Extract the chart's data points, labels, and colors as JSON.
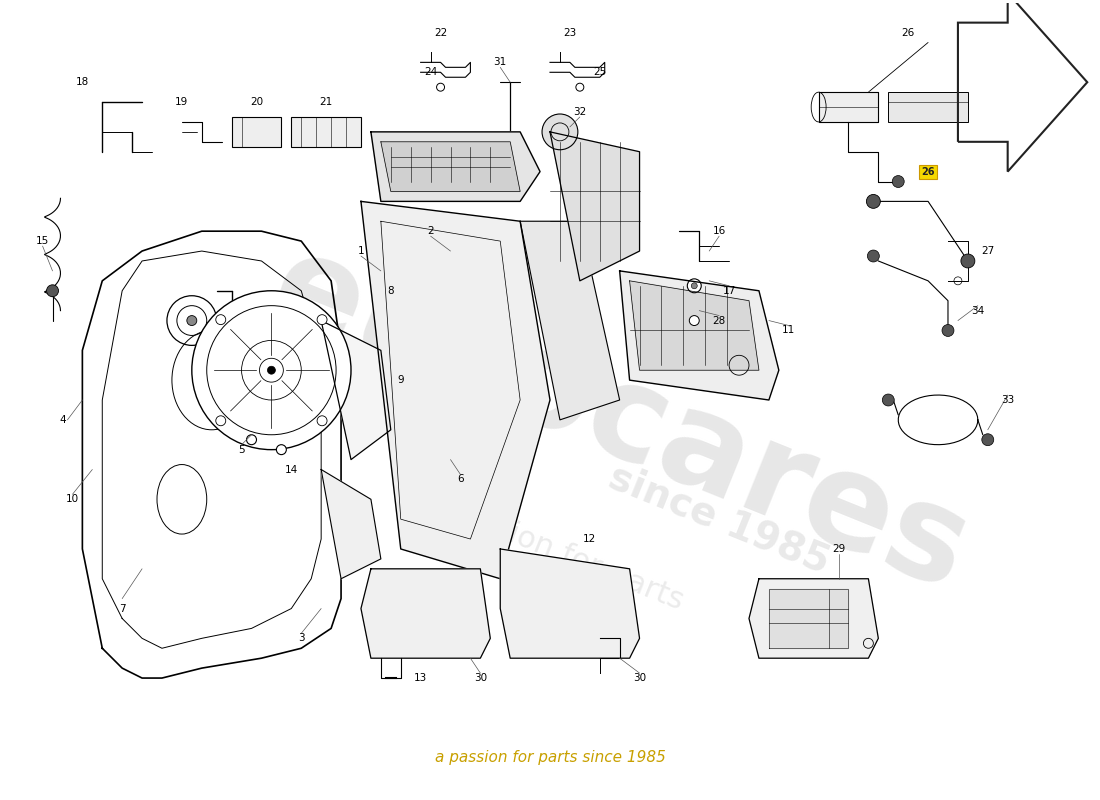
{
  "background_color": "#ffffff",
  "watermark_text": "a passion for parts since 1985",
  "line_color": "#000000",
  "watermark_color": "#c8a000",
  "wm_bg_color": "#e8e8e8"
}
